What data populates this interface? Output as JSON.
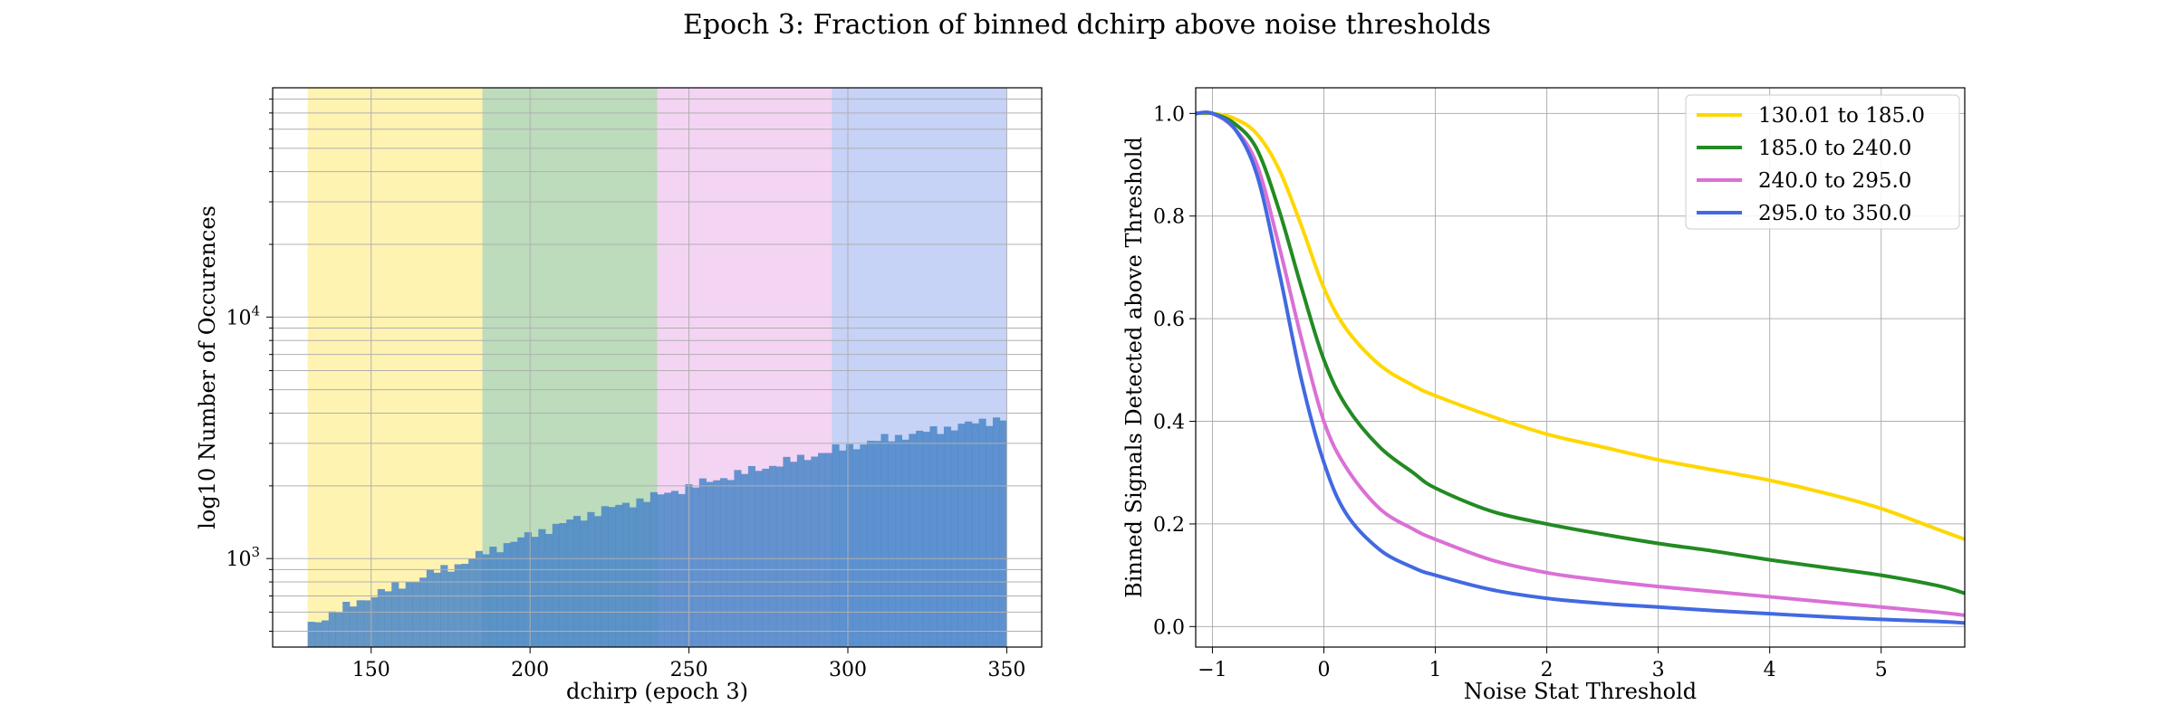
{
  "figure": {
    "title": "Epoch 3: Fraction of binned dchirp above noise thresholds"
  },
  "chart_data": [
    {
      "type": "bar",
      "subtype": "histogram",
      "xlabel": "dchirp (epoch 3)",
      "ylabel": "log10 Number of Occurences",
      "xlim": [
        119,
        361
      ],
      "ylim": [
        430,
        89000
      ],
      "yscale": "log",
      "xticks": [
        150,
        200,
        250,
        300,
        350
      ],
      "xtick_labels": [
        "150",
        "200",
        "250",
        "300",
        "350"
      ],
      "ytick_labels": [
        {
          "value": 1000,
          "base": "10",
          "exp": "3"
        },
        {
          "value": 10000,
          "base": "10",
          "exp": "4"
        }
      ],
      "grid": true,
      "bin_range": [
        130.01,
        350.0
      ],
      "bin_count": 100,
      "hist_color": "#4a86c8",
      "count_anchors": [
        [
          130.01,
          530
        ],
        [
          140,
          610
        ],
        [
          150,
          700
        ],
        [
          160,
          780
        ],
        [
          170,
          880
        ],
        [
          180,
          970
        ],
        [
          185,
          1050
        ],
        [
          200,
          1250
        ],
        [
          220,
          1550
        ],
        [
          240,
          1820
        ],
        [
          260,
          2150
        ],
        [
          280,
          2500
        ],
        [
          295,
          2800
        ],
        [
          310,
          3100
        ],
        [
          330,
          3450
        ],
        [
          350,
          3850
        ]
      ],
      "bands": [
        {
          "range": [
            130.01,
            185.0
          ],
          "color": "#ffd700"
        },
        {
          "range": [
            185.0,
            240.0
          ],
          "color": "#228b22"
        },
        {
          "range": [
            240.0,
            295.0
          ],
          "color": "#da70d6"
        },
        {
          "range": [
            295.0,
            350.0
          ],
          "color": "#4169e1"
        }
      ]
    },
    {
      "type": "line",
      "xlabel": "Noise Stat Threshold",
      "ylabel": "Binned Signals Detected above Threshold",
      "xlim": [
        -1.15,
        5.75
      ],
      "ylim": [
        -0.04,
        1.05
      ],
      "xticks": [
        -1,
        0,
        1,
        2,
        3,
        4,
        5
      ],
      "xtick_labels": [
        "−1",
        "0",
        "1",
        "2",
        "3",
        "4",
        "5"
      ],
      "yticks": [
        0.0,
        0.2,
        0.4,
        0.6,
        0.8,
        1.0
      ],
      "ytick_labels": [
        "0.0",
        "0.2",
        "0.4",
        "0.6",
        "0.8",
        "1.0"
      ],
      "grid": true,
      "legend_position": "top-right",
      "series": [
        {
          "name": "130.01 to 185.0",
          "color": "#ffd700",
          "x": [
            -1.15,
            -1.0,
            -0.8,
            -0.6,
            -0.4,
            -0.2,
            0.0,
            0.2,
            0.5,
            0.8,
            1.0,
            1.5,
            2.0,
            2.5,
            3.0,
            3.5,
            4.0,
            4.5,
            5.0,
            5.5,
            5.75
          ],
          "y": [
            1.0,
            1.0,
            0.99,
            0.96,
            0.89,
            0.78,
            0.66,
            0.58,
            0.51,
            0.47,
            0.45,
            0.41,
            0.375,
            0.35,
            0.325,
            0.305,
            0.285,
            0.26,
            0.23,
            0.19,
            0.17
          ]
        },
        {
          "name": "185.0 to 240.0",
          "color": "#228b22",
          "x": [
            -1.15,
            -1.0,
            -0.8,
            -0.6,
            -0.4,
            -0.2,
            0.0,
            0.2,
            0.5,
            0.8,
            1.0,
            1.5,
            2.0,
            2.5,
            3.0,
            3.5,
            4.0,
            4.5,
            5.0,
            5.5,
            5.75
          ],
          "y": [
            1.0,
            1.0,
            0.98,
            0.93,
            0.81,
            0.66,
            0.52,
            0.43,
            0.35,
            0.3,
            0.27,
            0.225,
            0.2,
            0.18,
            0.162,
            0.147,
            0.13,
            0.115,
            0.1,
            0.08,
            0.065
          ]
        },
        {
          "name": "240.0 to 295.0",
          "color": "#da70d6",
          "x": [
            -1.15,
            -1.0,
            -0.8,
            -0.6,
            -0.4,
            -0.2,
            0.0,
            0.2,
            0.5,
            0.8,
            1.0,
            1.5,
            2.0,
            2.5,
            3.0,
            3.5,
            4.0,
            4.5,
            5.0,
            5.5,
            5.75
          ],
          "y": [
            1.0,
            1.0,
            0.97,
            0.9,
            0.74,
            0.56,
            0.4,
            0.31,
            0.23,
            0.19,
            0.17,
            0.13,
            0.105,
            0.09,
            0.078,
            0.068,
            0.058,
            0.048,
            0.038,
            0.028,
            0.022
          ]
        },
        {
          "name": "295.0 to 350.0",
          "color": "#4169e1",
          "x": [
            -1.15,
            -1.0,
            -0.8,
            -0.6,
            -0.4,
            -0.2,
            0.0,
            0.2,
            0.5,
            0.8,
            1.0,
            1.5,
            2.0,
            2.5,
            3.0,
            3.5,
            4.0,
            4.5,
            5.0,
            5.5,
            5.75
          ],
          "y": [
            1.0,
            1.0,
            0.97,
            0.88,
            0.69,
            0.48,
            0.32,
            0.22,
            0.15,
            0.115,
            0.1,
            0.072,
            0.055,
            0.045,
            0.038,
            0.031,
            0.025,
            0.019,
            0.014,
            0.01,
            0.007
          ]
        }
      ]
    }
  ]
}
